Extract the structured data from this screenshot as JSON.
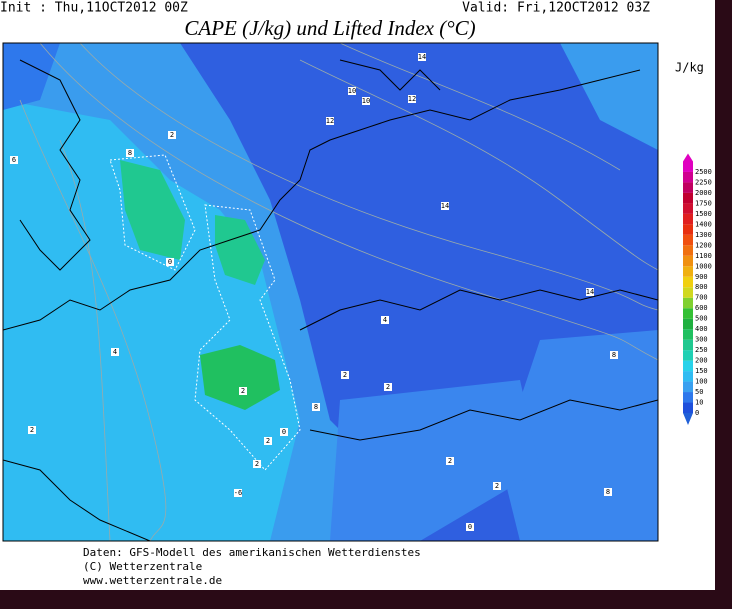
{
  "header": {
    "init": "Init : Thu,11OCT2012 00Z",
    "valid": "Valid: Fri,12OCT2012 03Z",
    "title": "CAPE (J/kg) und Lifted Index (°C)"
  },
  "legend": {
    "unit": "J/kg",
    "levels": [
      0,
      10,
      50,
      100,
      150,
      200,
      250,
      300,
      400,
      500,
      600,
      700,
      800,
      900,
      1000,
      1100,
      1200,
      1300,
      1400,
      1500,
      1750,
      2000,
      2250,
      2500
    ],
    "colors": [
      "#1e50dc",
      "#2e78ec",
      "#3aa0f0",
      "#30bcf2",
      "#28d2ea",
      "#20d0b4",
      "#20c890",
      "#20c060",
      "#20b040",
      "#34c034",
      "#80d030",
      "#d0d820",
      "#f0d010",
      "#f0b010",
      "#f09010",
      "#f07010",
      "#f05010",
      "#e83010",
      "#e02020",
      "#d01030",
      "#c00030",
      "#c00060",
      "#d00090",
      "#e000c0"
    ]
  },
  "map": {
    "labels": [
      "2",
      "8",
      "6",
      "0",
      "14",
      "10",
      "10",
      "12",
      "12",
      "14",
      "14",
      "4",
      "2",
      "2",
      "2",
      "8",
      "2",
      "2",
      "0",
      "-6",
      "4",
      "2",
      "2",
      "8",
      "2",
      "8",
      "0"
    ]
  },
  "footer": {
    "lines": [
      "Daten: GFS-Modell des amerikanischen Wetterdienstes",
      "(C) Wetterzentrale",
      "www.wetterzentrale.de"
    ]
  }
}
